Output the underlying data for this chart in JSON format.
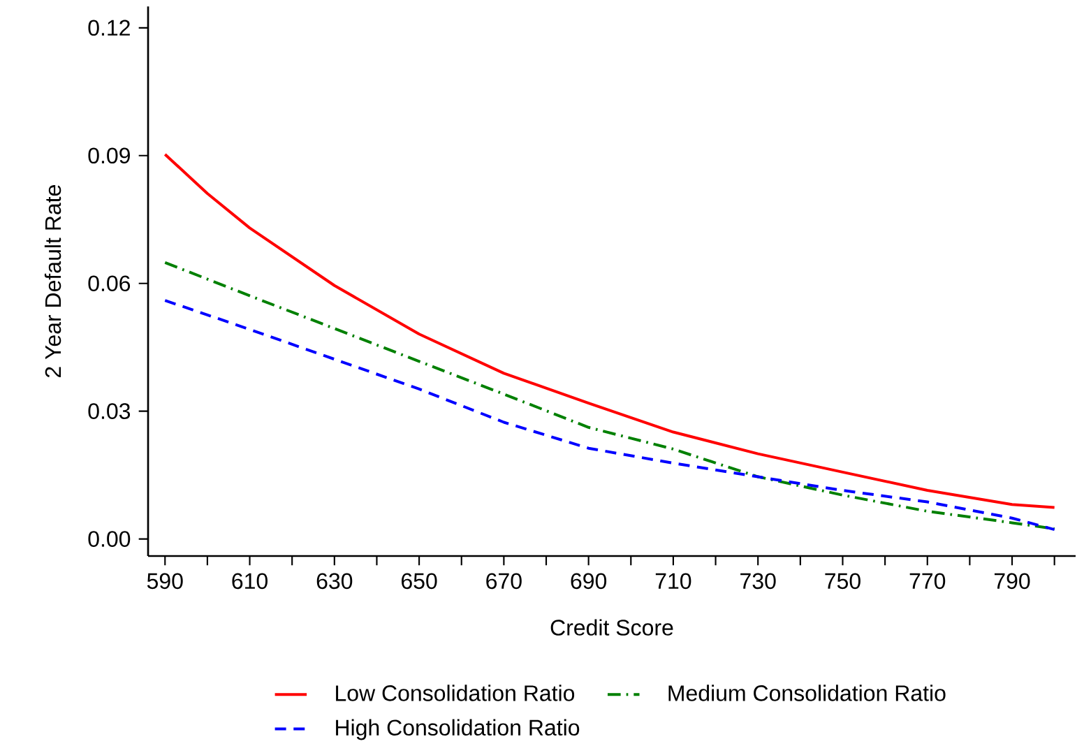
{
  "chart_data": {
    "type": "line",
    "xlabel": "Credit Score",
    "ylabel": "2 Year Default Rate",
    "xlim": [
      586,
      805
    ],
    "ylim": [
      -0.004,
      0.125
    ],
    "xticks": [
      590,
      {
        "value": 600,
        "label": null
      },
      610,
      {
        "value": 620,
        "label": null
      },
      630,
      {
        "value": 640,
        "label": null
      },
      650,
      {
        "value": 660,
        "label": null
      },
      670,
      {
        "value": 680,
        "label": null
      },
      690,
      {
        "value": 700,
        "label": null
      },
      710,
      {
        "value": 720,
        "label": null
      },
      730,
      {
        "value": 740,
        "label": null
      },
      750,
      {
        "value": 760,
        "label": null
      },
      770,
      {
        "value": 780,
        "label": null
      },
      790,
      {
        "value": 800,
        "label": null
      }
    ],
    "yticks": [
      {
        "value": 0,
        "label": "0.00"
      },
      0.03,
      0.06,
      0.09,
      0.12
    ],
    "x": [
      590,
      600,
      610,
      630,
      650,
      670,
      690,
      710,
      730,
      750,
      770,
      790,
      800
    ],
    "legend": "bottom",
    "grid": false,
    "marker": "none",
    "series": [
      {
        "name": "Low Consolidation Ratio",
        "color": "#ff0000",
        "line_style": "solid",
        "values": [
          0.0903,
          0.0811,
          0.073,
          0.0595,
          0.0481,
          0.0389,
          0.0319,
          0.0251,
          0.02,
          0.0157,
          0.0114,
          0.0081,
          0.0074
        ]
      },
      {
        "name": "Medium Consolidation Ratio",
        "color": "#008000",
        "line_style": "dashdot",
        "values": [
          0.0649,
          0.061,
          0.0571,
          0.0494,
          0.0417,
          0.034,
          0.0262,
          0.0211,
          0.0146,
          0.0103,
          0.0065,
          0.0038,
          0.0024
        ]
      },
      {
        "name": "High Consolidation Ratio",
        "color": "#0000ff",
        "line_style": "dashed",
        "values": [
          0.056,
          0.0526,
          0.0492,
          0.0422,
          0.0352,
          0.0274,
          0.0213,
          0.0178,
          0.0146,
          0.0114,
          0.0087,
          0.0049,
          0.0022
        ]
      }
    ]
  }
}
